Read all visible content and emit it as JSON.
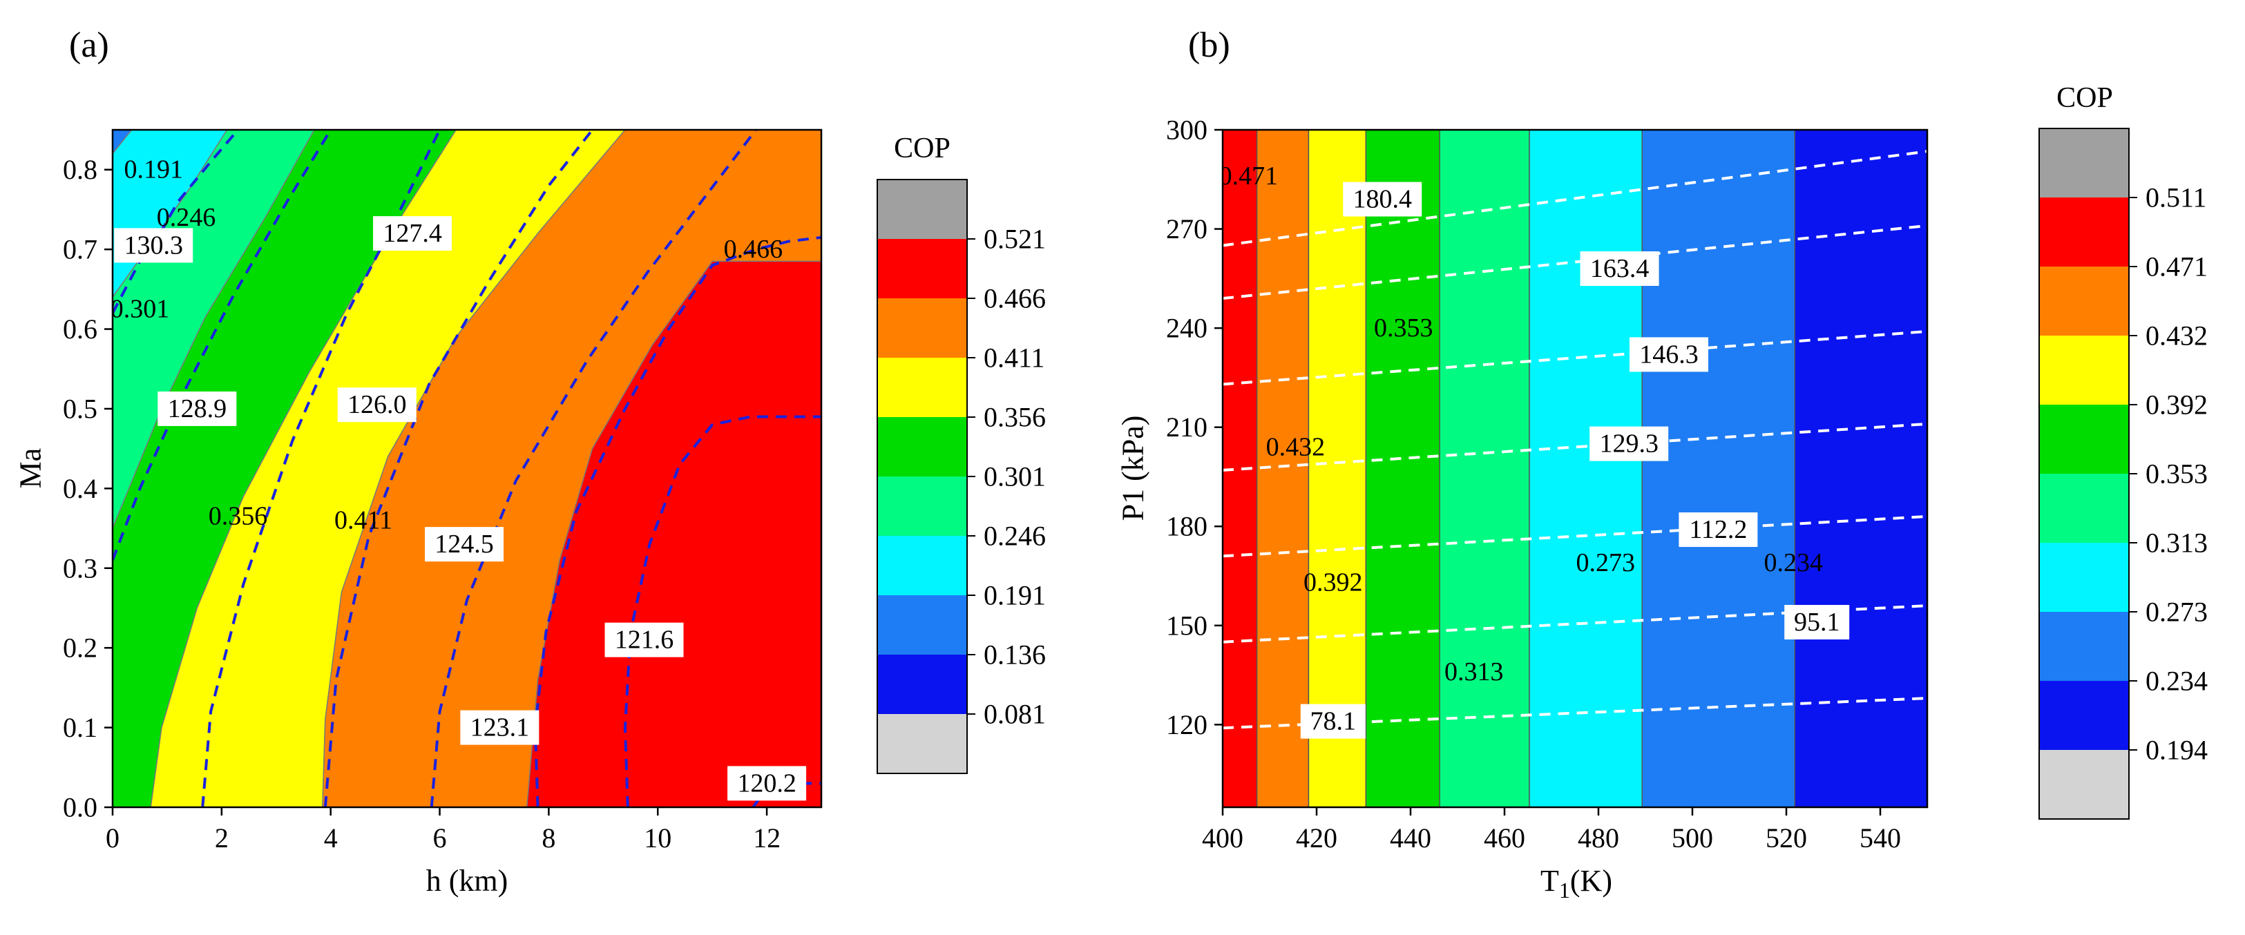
{
  "chart_data": [
    {
      "panel_label": "(a)",
      "type": "contour",
      "xlabel": "h (km)",
      "ylabel": "Ma",
      "xlim": [
        0,
        13
      ],
      "ylim": [
        0,
        0.85
      ],
      "xticks": [
        "0",
        "2",
        "4",
        "6",
        "8",
        "10",
        "12"
      ],
      "xtick_values": [
        0,
        2,
        4,
        6,
        8,
        10,
        12
      ],
      "yticks": [
        "0.0",
        "0.1",
        "0.2",
        "0.3",
        "0.4",
        "0.5",
        "0.6",
        "0.7",
        "0.8"
      ],
      "ytick_values": [
        0,
        0.1,
        0.2,
        0.3,
        0.4,
        0.5,
        0.6,
        0.7,
        0.8
      ],
      "colorbar": {
        "title": "COP",
        "colors": [
          "#d3d3d3",
          "#0a14f0",
          "#1e7df5",
          "#00f5ff",
          "#00fa82",
          "#00dc00",
          "#ffff00",
          "#ff8000",
          "#ff0000",
          "#a0a0a0"
        ],
        "tick_labels": [
          "0.081",
          "0.136",
          "0.191",
          "0.246",
          "0.301",
          "0.356",
          "0.411",
          "0.466",
          "0.521"
        ]
      },
      "cop_bands": [
        {
          "level": "0.136-0.191",
          "color": "#1e7df5",
          "points": [
            [
              0,
              0.85
            ],
            [
              0.35,
              0.85
            ],
            [
              0,
              0.82
            ]
          ]
        },
        {
          "level": "0.191-0.246",
          "color": "#00f5ff",
          "points": [
            [
              0,
              0.82
            ],
            [
              0.35,
              0.85
            ],
            [
              2.1,
              0.85
            ],
            [
              1.4,
              0.775
            ],
            [
              0,
              0.64
            ]
          ]
        },
        {
          "level": "0.246-0.301",
          "color": "#00fa82",
          "points": [
            [
              0,
              0.64
            ],
            [
              1.4,
              0.775
            ],
            [
              2.1,
              0.85
            ],
            [
              3.7,
              0.85
            ],
            [
              2.8,
              0.74
            ],
            [
              1.7,
              0.615
            ],
            [
              0.9,
              0.5
            ],
            [
              0,
              0.35
            ]
          ]
        },
        {
          "level": "0.301-0.356",
          "color": "#00dc00",
          "points": [
            [
              0,
              0.35
            ],
            [
              0.9,
              0.5
            ],
            [
              1.7,
              0.615
            ],
            [
              2.8,
              0.74
            ],
            [
              3.7,
              0.85
            ],
            [
              6.3,
              0.85
            ],
            [
              5.1,
              0.72
            ],
            [
              3.6,
              0.545
            ],
            [
              2.4,
              0.39
            ],
            [
              1.55,
              0.25
            ],
            [
              0.9,
              0.1
            ],
            [
              0.7,
              0
            ],
            [
              0,
              0
            ]
          ]
        },
        {
          "level": "0.356-0.411",
          "color": "#ffff00",
          "points": [
            [
              0.7,
              0
            ],
            [
              0.9,
              0.1
            ],
            [
              1.55,
              0.25
            ],
            [
              2.4,
              0.39
            ],
            [
              3.6,
              0.545
            ],
            [
              5.1,
              0.72
            ],
            [
              6.3,
              0.85
            ],
            [
              9.4,
              0.85
            ],
            [
              7.8,
              0.72
            ],
            [
              6.3,
              0.59
            ],
            [
              5.05,
              0.44
            ],
            [
              4.2,
              0.27
            ],
            [
              3.9,
              0.11
            ],
            [
              3.85,
              0
            ]
          ]
        },
        {
          "level": "0.411-0.466",
          "color": "#ff8000",
          "points": [
            [
              3.85,
              0
            ],
            [
              3.9,
              0.11
            ],
            [
              4.2,
              0.27
            ],
            [
              5.05,
              0.44
            ],
            [
              6.3,
              0.59
            ],
            [
              7.8,
              0.72
            ],
            [
              9.4,
              0.85
            ],
            [
              13,
              0.85
            ],
            [
              13,
              0.685
            ],
            [
              11,
              0.685
            ],
            [
              9.9,
              0.58
            ],
            [
              8.8,
              0.45
            ],
            [
              8.2,
              0.31
            ],
            [
              7.8,
              0.16
            ],
            [
              7.6,
              0
            ]
          ]
        },
        {
          "level": "0.466-0.521",
          "color": "#ff0000",
          "points": [
            [
              7.6,
              0
            ],
            [
              7.8,
              0.16
            ],
            [
              8.2,
              0.31
            ],
            [
              8.8,
              0.45
            ],
            [
              9.9,
              0.58
            ],
            [
              11,
              0.685
            ],
            [
              13,
              0.685
            ],
            [
              13,
              0
            ]
          ]
        }
      ],
      "boundary_labels": [
        {
          "text": "0.191",
          "x": 0.75,
          "y": 0.8
        },
        {
          "text": "0.246",
          "x": 1.35,
          "y": 0.74
        },
        {
          "text": "0.301",
          "x": 0.5,
          "y": 0.625
        },
        {
          "text": "0.356",
          "x": 2.3,
          "y": 0.365
        },
        {
          "text": "0.411",
          "x": 4.6,
          "y": 0.36
        },
        {
          "text": "0.466",
          "x": 11.75,
          "y": 0.7
        }
      ],
      "isolines": [
        {
          "value": "130.3",
          "points": [
            [
              0,
              0.62
            ],
            [
              0.5,
              0.685
            ],
            [
              0.75,
              0.705
            ],
            [
              1.2,
              0.76
            ],
            [
              1.8,
              0.81
            ],
            [
              2.3,
              0.85
            ]
          ]
        },
        {
          "value": "128.9",
          "points": [
            [
              0,
              0.31
            ],
            [
              0.5,
              0.4
            ],
            [
              1.3,
              0.52
            ],
            [
              2.2,
              0.64
            ],
            [
              3.2,
              0.76
            ],
            [
              4.0,
              0.85
            ]
          ]
        },
        {
          "value": "127.4",
          "points": [
            [
              1.65,
              0
            ],
            [
              1.8,
              0.12
            ],
            [
              2.4,
              0.28
            ],
            [
              3.3,
              0.46
            ],
            [
              4.3,
              0.62
            ],
            [
              5.1,
              0.725
            ],
            [
              6.0,
              0.85
            ]
          ]
        },
        {
          "value": "126.0",
          "points": [
            [
              3.9,
              0
            ],
            [
              4.1,
              0.16
            ],
            [
              4.7,
              0.34
            ],
            [
              5.8,
              0.53
            ],
            [
              6.9,
              0.66
            ],
            [
              8.0,
              0.78
            ],
            [
              8.8,
              0.85
            ]
          ]
        },
        {
          "value": "124.5",
          "points": [
            [
              5.85,
              0
            ],
            [
              6.0,
              0.12
            ],
            [
              6.5,
              0.26
            ],
            [
              7.4,
              0.41
            ],
            [
              8.7,
              0.56
            ],
            [
              9.8,
              0.67
            ],
            [
              10.8,
              0.76
            ],
            [
              11.8,
              0.85
            ]
          ]
        },
        {
          "value": "123.1",
          "points": [
            [
              7.8,
              0
            ],
            [
              7.75,
              0.1
            ],
            [
              7.95,
              0.22
            ],
            [
              8.5,
              0.37
            ],
            [
              9.4,
              0.5
            ],
            [
              10.2,
              0.6
            ],
            [
              11.0,
              0.68
            ],
            [
              11.8,
              0.7
            ],
            [
              12.4,
              0.71
            ],
            [
              13,
              0.715
            ]
          ]
        },
        {
          "value": "121.6",
          "points": [
            [
              9.45,
              0
            ],
            [
              9.4,
              0.1
            ],
            [
              9.5,
              0.22
            ],
            [
              9.85,
              0.33
            ],
            [
              10.4,
              0.43
            ],
            [
              11.0,
              0.48
            ],
            [
              11.7,
              0.49
            ],
            [
              12.4,
              0.49
            ],
            [
              13,
              0.49
            ]
          ]
        },
        {
          "value": "120.2",
          "points": [
            [
              11.75,
              0
            ],
            [
              11.9,
              0.015
            ],
            [
              12.2,
              0.025
            ],
            [
              12.6,
              0.03
            ],
            [
              13,
              0.03
            ]
          ]
        }
      ],
      "isoline_labels": [
        {
          "text": "130.3",
          "x": 0.75,
          "y": 0.705
        },
        {
          "text": "128.9",
          "x": 1.55,
          "y": 0.5
        },
        {
          "text": "127.4",
          "x": 5.5,
          "y": 0.72
        },
        {
          "text": "126.0",
          "x": 4.85,
          "y": 0.505
        },
        {
          "text": "124.5",
          "x": 6.45,
          "y": 0.33
        },
        {
          "text": "123.1",
          "x": 7.1,
          "y": 0.1
        },
        {
          "text": "121.6",
          "x": 9.75,
          "y": 0.21
        },
        {
          "text": "120.2",
          "x": 12.0,
          "y": 0.03
        }
      ]
    },
    {
      "panel_label": "(b)",
      "type": "contour",
      "xlabel": "T1(K)",
      "ylabel": "P1 (kPa)",
      "xlim": [
        400,
        550
      ],
      "ylim": [
        95,
        300
      ],
      "xticks": [
        "400",
        "420",
        "440",
        "460",
        "480",
        "500",
        "520",
        "540"
      ],
      "xtick_values": [
        400,
        420,
        440,
        460,
        480,
        500,
        520,
        540
      ],
      "yticks": [
        "120",
        "150",
        "180",
        "210",
        "240",
        "270",
        "300"
      ],
      "ytick_values": [
        120,
        150,
        180,
        210,
        240,
        270,
        300
      ],
      "colorbar": {
        "title": "COP",
        "colors": [
          "#d3d3d3",
          "#0a14f0",
          "#1e7df5",
          "#00f5ff",
          "#00fa82",
          "#00dc00",
          "#ffff00",
          "#ff8000",
          "#ff0000",
          "#a0a0a0"
        ],
        "tick_labels": [
          "0.194",
          "0.234",
          "0.273",
          "0.313",
          "0.353",
          "0.392",
          "0.432",
          "0.471",
          "0.511"
        ]
      },
      "cop_bands": [
        {
          "level": "0.471-0.511",
          "color": "#ff0000",
          "x_range": [
            400,
            407.3
          ]
        },
        {
          "level": "0.432-0.471",
          "color": "#ff8000",
          "x_range": [
            407.3,
            418.3
          ]
        },
        {
          "level": "0.392-0.432",
          "color": "#ffff00",
          "x_range": [
            418.3,
            430.5
          ]
        },
        {
          "level": "0.353-0.392",
          "color": "#00dc00",
          "x_range": [
            430.5,
            446.2
          ]
        },
        {
          "level": "0.313-0.353",
          "color": "#00fa82",
          "x_range": [
            446.2,
            465.3
          ]
        },
        {
          "level": "0.273-0.313",
          "color": "#00f5ff",
          "x_range": [
            465.3,
            489.3
          ]
        },
        {
          "level": "0.234-0.273",
          "color": "#1e7df5",
          "x_range": [
            489.3,
            521.8
          ]
        },
        {
          "level": "0.194-0.234",
          "color": "#0a14f0",
          "x_range": [
            521.8,
            550
          ]
        }
      ],
      "boundary_labels": [
        {
          "text": "0.471",
          "x": 405.5,
          "y": 286
        },
        {
          "text": "0.353",
          "x": 438.5,
          "y": 240
        },
        {
          "text": "0.432",
          "x": 415.5,
          "y": 204
        },
        {
          "text": "0.392",
          "x": 423.5,
          "y": 163
        },
        {
          "text": "0.313",
          "x": 453.5,
          "y": 136
        },
        {
          "text": "0.273",
          "x": 481.5,
          "y": 169
        },
        {
          "text": "0.234",
          "x": 521.5,
          "y": 169
        }
      ],
      "isolines": [
        {
          "value": "180.4",
          "points": [
            [
              400,
              265
            ],
            [
              550,
              293.5
            ]
          ]
        },
        {
          "value": "163.4",
          "points": [
            [
              400,
              249
            ],
            [
              550,
              271
            ]
          ]
        },
        {
          "value": "146.3",
          "points": [
            [
              400,
              223
            ],
            [
              550,
              239
            ]
          ]
        },
        {
          "value": "129.3",
          "points": [
            [
              400,
              197
            ],
            [
              550,
              211
            ]
          ]
        },
        {
          "value": "112.2",
          "points": [
            [
              400,
              171
            ],
            [
              550,
              183
            ]
          ]
        },
        {
          "value": "95.1",
          "points": [
            [
              400,
              145
            ],
            [
              550,
              156
            ]
          ]
        },
        {
          "value": "78.1",
          "points": [
            [
              400,
              119
            ],
            [
              550,
              128
            ]
          ]
        }
      ],
      "isoline_labels": [
        {
          "text": "180.4",
          "x": 434,
          "y": 279
        },
        {
          "text": "163.4",
          "x": 484.5,
          "y": 258
        },
        {
          "text": "146.3",
          "x": 495,
          "y": 232
        },
        {
          "text": "129.3",
          "x": 486.5,
          "y": 205
        },
        {
          "text": "112.2",
          "x": 505.5,
          "y": 179
        },
        {
          "text": "95.1",
          "x": 526.5,
          "y": 151
        },
        {
          "text": "78.1",
          "x": 423.5,
          "y": 121
        }
      ]
    }
  ]
}
